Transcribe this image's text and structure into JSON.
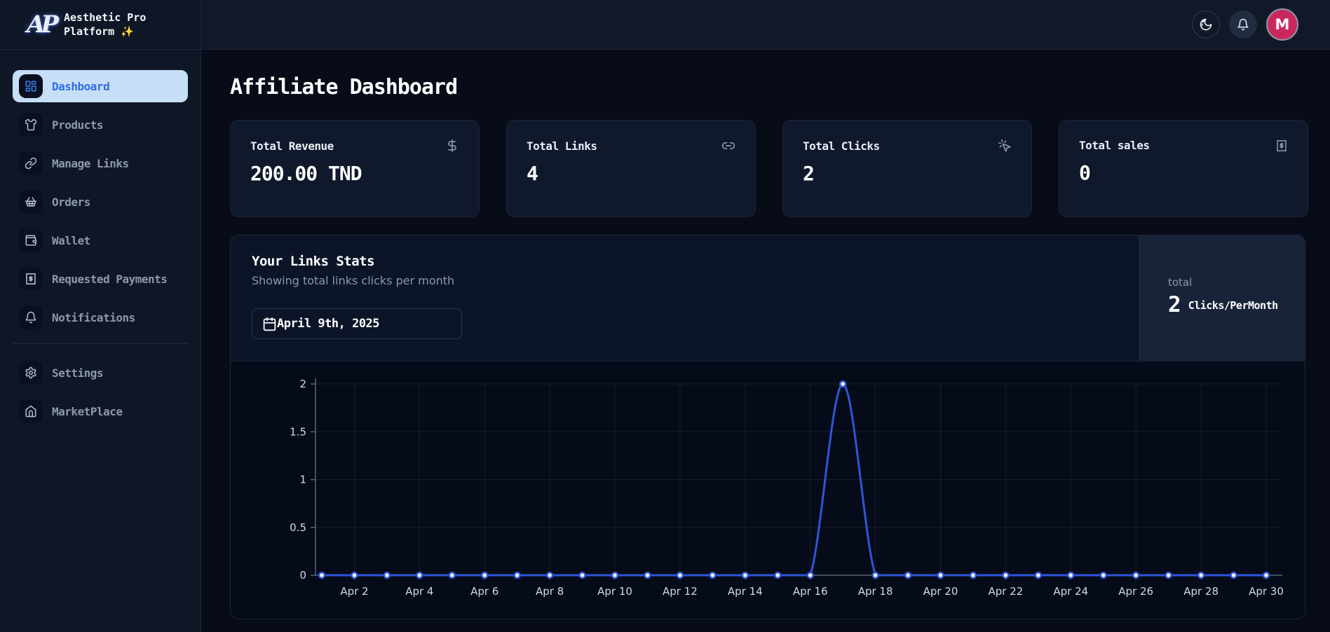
{
  "brand": {
    "logo_text": "AP",
    "name_line1": "Aesthetic Pro",
    "name_line2": "Platform ✨"
  },
  "header": {
    "theme_toggle_icon": "moon-stars",
    "notifications_icon": "bell",
    "avatar_initial": "M",
    "avatar_color": "#c9285f"
  },
  "sidebar": {
    "items": [
      {
        "label": "Dashboard",
        "icon": "dashboard",
        "active": true
      },
      {
        "label": "Products",
        "icon": "shirt"
      },
      {
        "label": "Manage Links",
        "icon": "link"
      },
      {
        "label": "Orders",
        "icon": "basket"
      },
      {
        "label": "Wallet",
        "icon": "wallet"
      },
      {
        "label": "Requested Payments",
        "icon": "receipt-dollar"
      },
      {
        "label": "Notifications",
        "icon": "bell"
      }
    ],
    "footer_items": [
      {
        "label": "Settings",
        "icon": "gear"
      },
      {
        "label": "MarketPlace",
        "icon": "store"
      }
    ]
  },
  "page": {
    "title": "Affiliate Dashboard"
  },
  "stats": [
    {
      "label": "Total Revenue",
      "value": "200.00 TND",
      "icon": "dollar-sign"
    },
    {
      "label": "Total Links",
      "value": "4",
      "icon": "link-2"
    },
    {
      "label": "Total Clicks",
      "value": "2",
      "icon": "mouse-pointer-click"
    },
    {
      "label": "Total sales",
      "value": "0",
      "icon": "receipt-dollar"
    }
  ],
  "links_stats": {
    "title": "Your Links Stats",
    "subtitle": "Showing total links clicks per month",
    "date_value": "April 9th, 2025",
    "total_label": "total",
    "total_value": "2",
    "total_unit": "Clicks/PerMonth"
  },
  "colors": {
    "accent_blue": "#3b82f6",
    "active_item_bg": "#c7def7",
    "active_item_text": "#2e6ee0",
    "avatar_pink": "#c9285f"
  },
  "chart_data": {
    "type": "line",
    "title": "Your Links Stats",
    "x": [
      "Apr 1",
      "Apr 2",
      "Apr 3",
      "Apr 4",
      "Apr 5",
      "Apr 6",
      "Apr 7",
      "Apr 8",
      "Apr 9",
      "Apr 10",
      "Apr 11",
      "Apr 12",
      "Apr 13",
      "Apr 14",
      "Apr 15",
      "Apr 16",
      "Apr 17",
      "Apr 18",
      "Apr 19",
      "Apr 20",
      "Apr 21",
      "Apr 22",
      "Apr 23",
      "Apr 24",
      "Apr 25",
      "Apr 26",
      "Apr 27",
      "Apr 28",
      "Apr 29",
      "Apr 30"
    ],
    "values": [
      0,
      0,
      0,
      0,
      0,
      0,
      0,
      0,
      0,
      0,
      0,
      0,
      0,
      0,
      0,
      0,
      2,
      0,
      0,
      0,
      0,
      0,
      0,
      0,
      0,
      0,
      0,
      0,
      0,
      0
    ],
    "x_tick_every": 2,
    "y_ticks": [
      0,
      0.5,
      1,
      1.5,
      2
    ],
    "ylim": [
      0,
      2
    ],
    "xlabel": "",
    "ylabel": "",
    "grid": true,
    "legend": false,
    "line_color": "#2e55d9",
    "point_fill": "#ffffff",
    "grid_color": "rgba(148,163,184,0.13)",
    "axis_color": "#5b6472",
    "tick_label_color": "#d3d9e3"
  }
}
